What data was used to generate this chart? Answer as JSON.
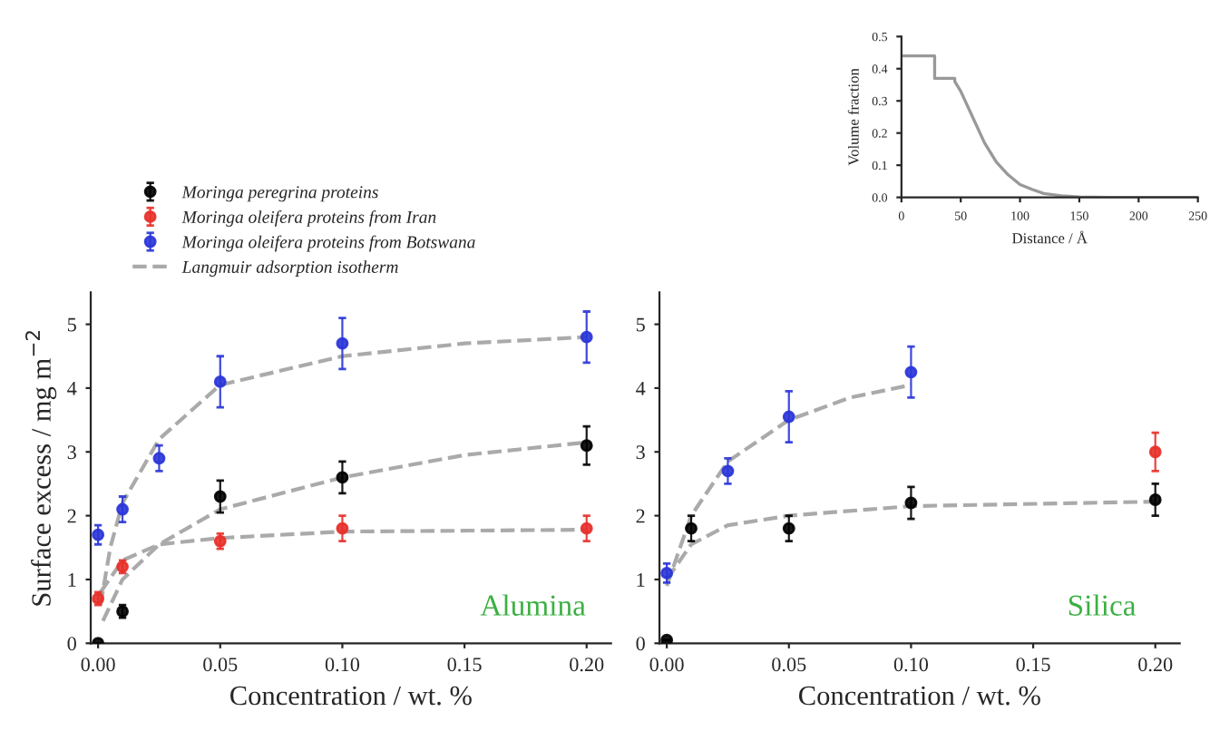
{
  "chart_data": [
    {
      "type": "scatter",
      "xlabel": "Concentration / wt. %",
      "ylabel": "Surface excess / mg m$^{−2}$",
      "annotations": [
        "Alumina"
      ],
      "xlim": [
        -0.003,
        0.21
      ],
      "xticks": [
        {
          "value": 0,
          "label": "0.00"
        },
        {
          "value": 0.05,
          "label": "0.05"
        },
        {
          "value": 0.1,
          "label": "0.10"
        },
        {
          "value": 0.15,
          "label": "0.15"
        },
        {
          "value": 0.2,
          "label": "0.20"
        }
      ],
      "ylim": [
        0,
        5.5
      ],
      "yticks": [
        0,
        1,
        2,
        3,
        4,
        5
      ],
      "line_style": "dashed",
      "legend": "top left",
      "series": [
        {
          "name": "Moringa peregrina proteins",
          "color": "#000000",
          "x": [
            0,
            0.01,
            0.05,
            0.1,
            0.2
          ],
          "values": [
            0.0,
            0.5,
            2.3,
            2.6,
            3.1
          ],
          "errors": [
            null,
            0.1,
            0.25,
            0.25,
            0.3
          ]
        },
        {
          "name": "Moringa oleifera proteins from Iran",
          "color": "#e8302a",
          "x": [
            0,
            0.01,
            0.05,
            0.1,
            0.2
          ],
          "values": [
            0.7,
            1.2,
            1.6,
            1.8,
            1.8
          ],
          "errors": [
            0.1,
            0.1,
            0.12,
            0.2,
            0.2
          ]
        },
        {
          "name": "Moringa oleifera proteins from Botswana",
          "color": "#2a35d8",
          "x": [
            0,
            0.01,
            0.025,
            0.05,
            0.1,
            0.2
          ],
          "values": [
            1.7,
            2.1,
            2.9,
            4.1,
            4.7,
            4.8
          ],
          "errors": [
            0.15,
            0.2,
            0.2,
            0.4,
            0.4,
            0.4
          ]
        },
        {
          "name": "Langmuir adsorption isotherm",
          "type": "line",
          "color": "#aaaaaa",
          "x": [
            0.002,
            0.01,
            0.025,
            0.05,
            0.1,
            0.15,
            0.2
          ],
          "values": [
            0.35,
            1.0,
            1.55,
            2.1,
            2.6,
            2.95,
            3.15
          ]
        },
        {
          "type": "line",
          "color": "#aaaaaa",
          "x": [
            0.001,
            0.01,
            0.025,
            0.05,
            0.1,
            0.2
          ],
          "values": [
            0.8,
            1.3,
            1.55,
            1.65,
            1.75,
            1.78
          ]
        },
        {
          "type": "line",
          "color": "#aaaaaa",
          "x": [
            0.001,
            0.005,
            0.01,
            0.025,
            0.05,
            0.1,
            0.15,
            0.2
          ],
          "values": [
            0.6,
            1.5,
            2.2,
            3.2,
            4.05,
            4.5,
            4.7,
            4.8
          ]
        }
      ]
    },
    {
      "type": "scatter",
      "xlabel": "Concentration / wt. %",
      "annotations": [
        "Silica"
      ],
      "xlim": [
        -0.003,
        0.21
      ],
      "xticks": [
        {
          "value": 0,
          "label": "0.00"
        },
        {
          "value": 0.05,
          "label": "0.05"
        },
        {
          "value": 0.1,
          "label": "0.10"
        },
        {
          "value": 0.15,
          "label": "0.15"
        },
        {
          "value": 0.2,
          "label": "0.20"
        }
      ],
      "ylim": [
        0,
        5.5
      ],
      "yticks": [
        0,
        1,
        2,
        3,
        4,
        5
      ],
      "line_style": "dashed",
      "series": [
        {
          "color": "#000000",
          "x": [
            0,
            0.01,
            0.05,
            0.1,
            0.2
          ],
          "values": [
            0.05,
            1.8,
            1.8,
            2.2,
            2.25
          ],
          "errors": [
            null,
            0.2,
            0.2,
            0.25,
            0.25
          ]
        },
        {
          "color": "#e8302a",
          "x": [
            0.2
          ],
          "values": [
            3.0
          ],
          "errors": [
            0.3
          ]
        },
        {
          "color": "#2a35d8",
          "x": [
            0,
            0.025,
            0.05,
            0.1
          ],
          "values": [
            1.1,
            2.7,
            3.55,
            4.25
          ],
          "errors": [
            0.15,
            0.2,
            0.4,
            0.4
          ]
        },
        {
          "type": "line",
          "color": "#aaaaaa",
          "x": [
            0,
            0.01,
            0.025,
            0.05,
            0.1,
            0.2
          ],
          "values": [
            1.0,
            1.55,
            1.85,
            2.0,
            2.15,
            2.22
          ]
        },
        {
          "type": "line",
          "color": "#aaaaaa",
          "x": [
            0,
            0.01,
            0.025,
            0.05,
            0.075,
            0.1
          ],
          "values": [
            0.9,
            2.0,
            2.85,
            3.5,
            3.85,
            4.05
          ]
        }
      ]
    },
    {
      "type": "line",
      "xlabel": "Distance / Å",
      "ylabel": "Volume fraction",
      "xlim": [
        0,
        250
      ],
      "xticks": [
        0,
        50,
        100,
        150,
        200,
        250
      ],
      "ylim": [
        0,
        0.5
      ],
      "yticks": [
        {
          "value": 0,
          "label": "0.0"
        },
        0.1,
        0.2,
        0.3,
        0.4,
        0.5
      ],
      "line_style": "solid",
      "series": [
        {
          "color": "#999999",
          "x": [
            0,
            28,
            28,
            45,
            45,
            50,
            60,
            70,
            80,
            90,
            100,
            110,
            120,
            135,
            150,
            175,
            200,
            250
          ],
          "values": [
            0.44,
            0.44,
            0.37,
            0.37,
            0.36,
            0.33,
            0.25,
            0.17,
            0.11,
            0.07,
            0.04,
            0.025,
            0.012,
            0.005,
            0.001,
            0,
            0,
            0
          ]
        }
      ]
    }
  ]
}
